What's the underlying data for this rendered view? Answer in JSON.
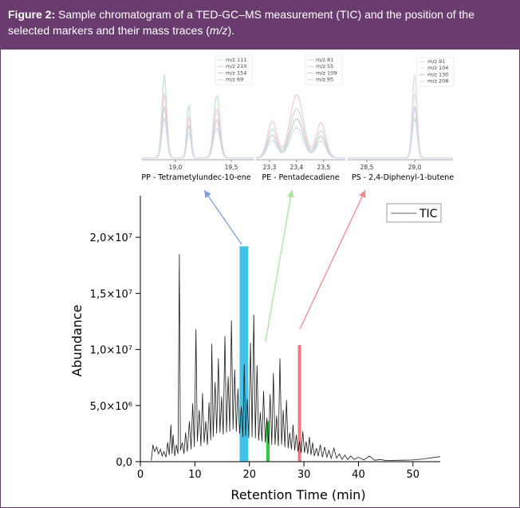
{
  "caption": {
    "label": "Figure 2:",
    "text": "Sample chromatogram of a TED-GC–MS measurement (TIC) and the position of the selected markers and their mass traces (",
    "italic": "m/z",
    "end": ")."
  },
  "chart_data": {
    "type": "line",
    "main": {
      "xlabel": "Retention Time (min)",
      "ylabel": "Abundance",
      "xlim": [
        0,
        55
      ],
      "ylim": [
        0,
        23000000
      ],
      "xticks": [
        "0",
        "10",
        "20",
        "30",
        "40",
        "50"
      ],
      "xtick_values": [
        0,
        10,
        20,
        30,
        40,
        50
      ],
      "yticks": [
        "0,0",
        "5,0×10⁶",
        "1,0×10⁷",
        "1,5×10⁷",
        "2,0×10⁷"
      ],
      "ytick_values": [
        0,
        5000000,
        10000000,
        15000000,
        20000000
      ],
      "legend": [
        "TIC"
      ],
      "series": [
        {
          "name": "TIC",
          "points": [
            [
              2,
              100000
            ],
            [
              2.3,
              1500000
            ],
            [
              2.6,
              900000
            ],
            [
              3,
              1300000
            ],
            [
              3.3,
              700000
            ],
            [
              3.7,
              1100000
            ],
            [
              4,
              500000
            ],
            [
              4.3,
              900000
            ],
            [
              4.7,
              400000
            ],
            [
              5,
              1700000
            ],
            [
              5.3,
              600000
            ],
            [
              5.6,
              3300000
            ],
            [
              5.8,
              700000
            ],
            [
              6,
              2400000
            ],
            [
              6.3,
              500000
            ],
            [
              6.6,
              1500000
            ],
            [
              6.9,
              700000
            ],
            [
              7.15,
              18500000
            ],
            [
              7.35,
              1000000
            ],
            [
              7.7,
              1700000
            ],
            [
              8,
              700000
            ],
            [
              8.3,
              2600000
            ],
            [
              8.6,
              900000
            ],
            [
              9,
              3600000
            ],
            [
              9.3,
              1100000
            ],
            [
              9.6,
              5200000
            ],
            [
              9.9,
              1300000
            ],
            [
              10.2,
              11800000
            ],
            [
              10.45,
              1800000
            ],
            [
              10.8,
              4600000
            ],
            [
              11.1,
              1400000
            ],
            [
              11.4,
              6100000
            ],
            [
              11.7,
              1700000
            ],
            [
              12,
              3600000
            ],
            [
              12.3,
              1500000
            ],
            [
              12.6,
              5300000
            ],
            [
              12.9,
              1900000
            ],
            [
              13.1,
              10500000
            ],
            [
              13.35,
              2200000
            ],
            [
              13.7,
              7100000
            ],
            [
              14,
              2500000
            ],
            [
              14.3,
              9200000
            ],
            [
              14.6,
              2600000
            ],
            [
              14.9,
              5800000
            ],
            [
              15.2,
              2400000
            ],
            [
              15.5,
              11200000
            ],
            [
              15.8,
              2600000
            ],
            [
              16.1,
              7600000
            ],
            [
              16.4,
              2700000
            ],
            [
              16.7,
              12600000
            ],
            [
              17,
              2900000
            ],
            [
              17.3,
              8200000
            ],
            [
              17.6,
              2700000
            ],
            [
              17.9,
              6500000
            ],
            [
              18.2,
              2500000
            ],
            [
              18.5,
              4900000
            ],
            [
              18.8,
              2200000
            ],
            [
              19.05,
              8700000
            ],
            [
              19.3,
              2300000
            ],
            [
              19.6,
              5600000
            ],
            [
              19.9,
              2100000
            ],
            [
              20.2,
              10600000
            ],
            [
              20.5,
              2200000
            ],
            [
              20.8,
              13100000
            ],
            [
              21.1,
              2100000
            ],
            [
              21.4,
              8600000
            ],
            [
              21.7,
              1900000
            ],
            [
              22,
              4400000
            ],
            [
              22.3,
              1800000
            ],
            [
              22.6,
              6300000
            ],
            [
              22.9,
              1700000
            ],
            [
              23.2,
              3900000
            ],
            [
              23.5,
              1600000
            ],
            [
              23.8,
              6000000
            ],
            [
              24.1,
              1500000
            ],
            [
              24.4,
              7900000
            ],
            [
              24.7,
              1500000
            ],
            [
              25,
              4100000
            ],
            [
              25.3,
              1400000
            ],
            [
              25.6,
              9200000
            ],
            [
              25.9,
              1500000
            ],
            [
              26.2,
              4600000
            ],
            [
              26.5,
              1300000
            ],
            [
              26.8,
              5500000
            ],
            [
              27.1,
              1200000
            ],
            [
              27.4,
              2600000
            ],
            [
              27.7,
              1100000
            ],
            [
              28,
              3300000
            ],
            [
              28.3,
              1000000
            ],
            [
              28.6,
              2400000
            ],
            [
              28.9,
              900000
            ],
            [
              29.2,
              1800000
            ],
            [
              29.5,
              800000
            ],
            [
              29.8,
              2700000
            ],
            [
              30.1,
              800000
            ],
            [
              30.4,
              1800000
            ],
            [
              30.7,
              700000
            ],
            [
              31,
              2200000
            ],
            [
              31.3,
              600000
            ],
            [
              31.6,
              1700000
            ],
            [
              31.9,
              500000
            ],
            [
              32.3,
              1200000
            ],
            [
              32.6,
              500000
            ],
            [
              33,
              1500000
            ],
            [
              33.4,
              400000
            ],
            [
              33.8,
              1300000
            ],
            [
              34.2,
              400000
            ],
            [
              34.6,
              1000000
            ],
            [
              35,
              300000
            ],
            [
              35.5,
              1200000
            ],
            [
              36,
              300000
            ],
            [
              36.5,
              700000
            ],
            [
              37,
              200000
            ],
            [
              37.5,
              600000
            ],
            [
              38,
              200000
            ],
            [
              38.6,
              500000
            ],
            [
              39.2,
              200000
            ],
            [
              40,
              400000
            ],
            [
              41,
              150000
            ],
            [
              42,
              500000
            ],
            [
              43,
              120000
            ],
            [
              44,
              200000
            ],
            [
              45,
              100000
            ],
            [
              47,
              120000
            ],
            [
              50,
              150000
            ],
            [
              52,
              250000
            ],
            [
              55,
              450000
            ]
          ]
        }
      ],
      "markers": [
        {
          "name": "PP",
          "x": 19.0,
          "width": 1.6,
          "top": 19200000,
          "color": "#3fc3e8"
        },
        {
          "name": "PE",
          "x": 23.4,
          "width": 0.6,
          "top": 3600000,
          "color": "#2ecc40"
        },
        {
          "name": "PS",
          "x": 29.2,
          "width": 0.6,
          "top": 10400000,
          "color": "#ee7b82"
        }
      ]
    },
    "insets": [
      {
        "name": "PP",
        "label": "PP - Tetrametylundec-10-ene",
        "xticks": [
          "19,0",
          "19,5"
        ],
        "xtick_values": [
          19.0,
          19.5
        ],
        "xlim": [
          18.7,
          19.7
        ],
        "legend": [
          "m/z 111",
          "m/z 210",
          "m/z 154",
          "m/z 69"
        ],
        "colors": [
          "#c8e4d4",
          "#f6cfd6",
          "#d8ccd6",
          "#d2dfee"
        ],
        "peaks": [
          [
            18.9,
            0.95,
            0.03
          ],
          [
            19.12,
            0.62,
            0.025
          ],
          [
            19.37,
            0.72,
            0.04
          ]
        ]
      },
      {
        "name": "PE",
        "label": "PE - Pentadecadiene",
        "xticks": [
          "23,3",
          "23,4",
          "23,5"
        ],
        "xtick_values": [
          23.3,
          23.4,
          23.5
        ],
        "xlim": [
          23.25,
          23.58
        ],
        "legend": [
          "m/z 81",
          "m/z 55",
          "m/z 109",
          "m/z 95"
        ],
        "colors": [
          "#f6cfd6",
          "#c8e4d4",
          "#d8ccd6",
          "#d2dfee"
        ],
        "peaks": [
          [
            23.31,
            0.42,
            0.025
          ],
          [
            23.4,
            0.72,
            0.035
          ],
          [
            23.49,
            0.4,
            0.025
          ]
        ]
      },
      {
        "name": "PS",
        "label": "PS - 2,4-Diphenyl-1-butene",
        "xticks": [
          "28,5",
          "29,0"
        ],
        "xtick_values": [
          28.5,
          29.0
        ],
        "xlim": [
          28.3,
          29.4
        ],
        "legend": [
          "m/z 91",
          "m/z 104",
          "m/z 130",
          "m/z 208"
        ],
        "colors": [
          "#dddddd",
          "#e6e6e6",
          "#d8ccd6",
          "#d2dfee"
        ],
        "peaks": [
          [
            29.0,
            0.95,
            0.035
          ]
        ]
      }
    ]
  }
}
